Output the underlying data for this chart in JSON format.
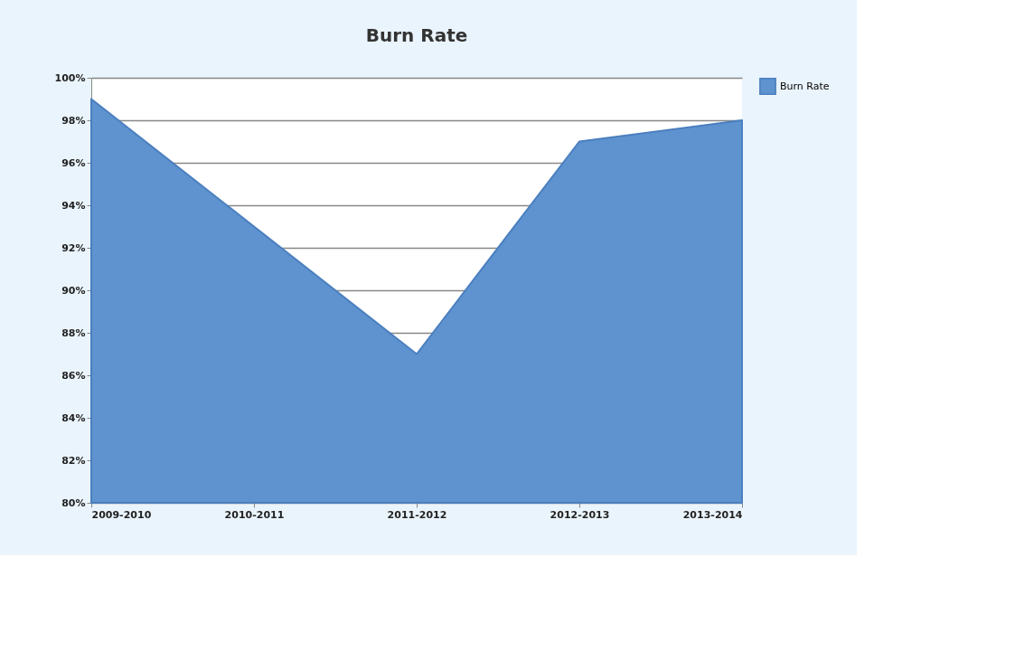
{
  "chart_data": {
    "type": "area",
    "title": "Burn Rate",
    "categories": [
      "2009-2010",
      "2010-2011",
      "2011-2012",
      "2012-2013",
      "2013-2014"
    ],
    "series": [
      {
        "name": "Burn Rate",
        "color": "#5f93cf",
        "values": [
          99,
          93,
          87,
          97,
          98
        ]
      }
    ],
    "ylim": [
      80,
      100
    ],
    "yticks": [
      {
        "value": 80,
        "label": "80%"
      },
      {
        "value": 82,
        "label": "82%"
      },
      {
        "value": 84,
        "label": "84%"
      },
      {
        "value": 86,
        "label": "86%"
      },
      {
        "value": 88,
        "label": "88%"
      },
      {
        "value": 90,
        "label": "90%"
      },
      {
        "value": 92,
        "label": "92%"
      },
      {
        "value": 94,
        "label": "94%"
      },
      {
        "value": 96,
        "label": "96%"
      },
      {
        "value": 98,
        "label": "98%"
      },
      {
        "value": 100,
        "label": "100%"
      }
    ],
    "grid": "y",
    "legend": "right"
  }
}
